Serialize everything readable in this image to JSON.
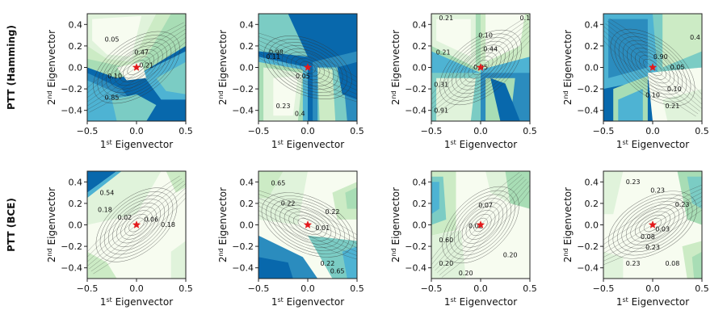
{
  "chart_data": {
    "type": "contour",
    "layout": "2 rows x 4 columns",
    "colormap": "GnBu",
    "xlim": [
      -0.5,
      0.5
    ],
    "ylim": [
      -0.5,
      0.5
    ],
    "xticks": [
      "−0.5",
      "0.0",
      "0.5"
    ],
    "yticks": [
      "0.4",
      "0.2",
      "0.0",
      "−0.2",
      "−0.4"
    ],
    "xlabel": {
      "base": "1",
      "sup": "st",
      "rest": " Eigenvector"
    },
    "ylabel": {
      "base": "2",
      "sup": "nd",
      "rest": " Eigenvector"
    },
    "rows": [
      {
        "label": "PTT (Hamming)",
        "panels": [
          {
            "contour_labels": [
              "0.05",
              "0.21",
              "0.47",
              "0.10",
              "0.85"
            ]
          },
          {
            "contour_labels": [
              "0.98",
              "0.11",
              "0.05",
              "0.23",
              "0.4"
            ]
          },
          {
            "contour_labels": [
              "0.21",
              "0.1",
              "0.10",
              "0.44",
              "0.21",
              "0.05",
              "0.31",
              "0.91"
            ]
          },
          {
            "contour_labels": [
              "0.4",
              "0.90",
              "0.05",
              "0.10",
              "0.10",
              "0.21"
            ]
          }
        ]
      },
      {
        "label": "PTT (BCE)",
        "panels": [
          {
            "contour_labels": [
              "0.54",
              "0.18",
              "0.02",
              "0.06",
              "0.18"
            ]
          },
          {
            "contour_labels": [
              "0.65",
              "0.22",
              "0.22",
              "0.01",
              "0.22",
              "0.65"
            ]
          },
          {
            "contour_labels": [
              "0.07",
              "0.02",
              "0.60",
              "0.20",
              "0.20",
              "0.20"
            ]
          },
          {
            "contour_labels": [
              "0.23",
              "0.23",
              "0.23",
              "0.03",
              "0.08",
              "0.23",
              "0.23",
              "0.08"
            ]
          }
        ]
      }
    ],
    "marker": {
      "x": 0.0,
      "y": 0.0,
      "symbol": "star",
      "color": "#e31a1c"
    },
    "color_levels": [
      "#f7fcf0",
      "#e0f3db",
      "#ccebc5",
      "#a8ddb5",
      "#7bccc4",
      "#4eb3d3",
      "#2b8cbe",
      "#0868ac"
    ]
  }
}
